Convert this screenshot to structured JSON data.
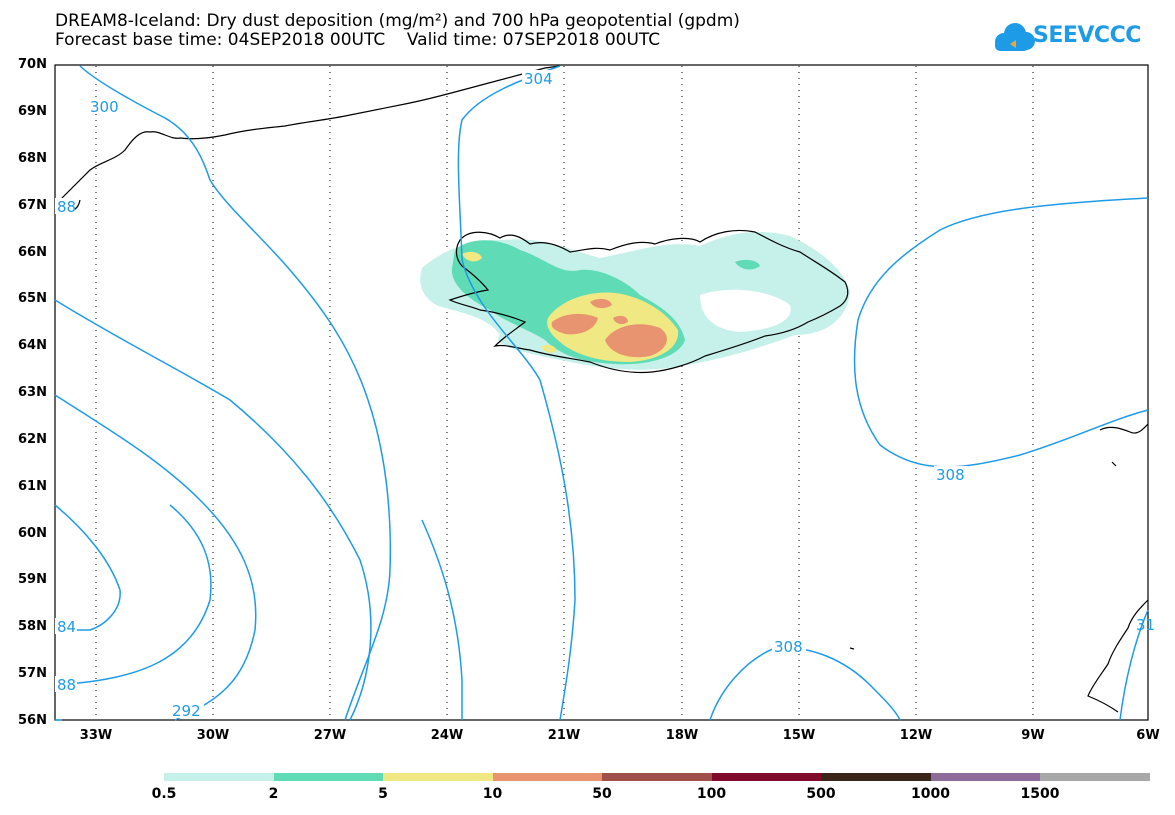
{
  "header": {
    "title_line1": "DREAM8-Iceland: Dry dust deposition (mg/m²) and 700 hPa geopotential (gpdm)",
    "title_line2": "Forecast base time: 04SEP2018 00UTC    Valid time: 07SEP2018 00UTC",
    "logo_text": "SEEVCCC",
    "logo_icon": "cloud-icon",
    "logo_color": "#1e9be6"
  },
  "map": {
    "lat_labels": [
      "70N",
      "69N",
      "68N",
      "67N",
      "66N",
      "65N",
      "64N",
      "63N",
      "62N",
      "61N",
      "60N",
      "59N",
      "58N",
      "57N",
      "56N"
    ],
    "lon_labels": [
      "33W",
      "30W",
      "27W",
      "24W",
      "21W",
      "18W",
      "15W",
      "12W",
      "9W",
      "6W"
    ],
    "lat_range": [
      56,
      70
    ],
    "lon_range": [
      -34.2,
      -6
    ],
    "gridlines": "dotted",
    "contour_color": "#1e9be6",
    "contour_labels": [
      "300",
      "304",
      "88",
      "84",
      "88",
      "292",
      "308",
      "308",
      "31"
    ]
  },
  "colorbar": {
    "labels": [
      "0.5",
      "2",
      "5",
      "10",
      "50",
      "100",
      "500",
      "1000",
      "1500"
    ],
    "colors": [
      "#c6f1ea",
      "#5fdcb5",
      "#f0e882",
      "#e89470",
      "#a0504b",
      "#7f0a2b",
      "#3a2618",
      "#8f6b9b",
      "#a8a8a8"
    ]
  }
}
